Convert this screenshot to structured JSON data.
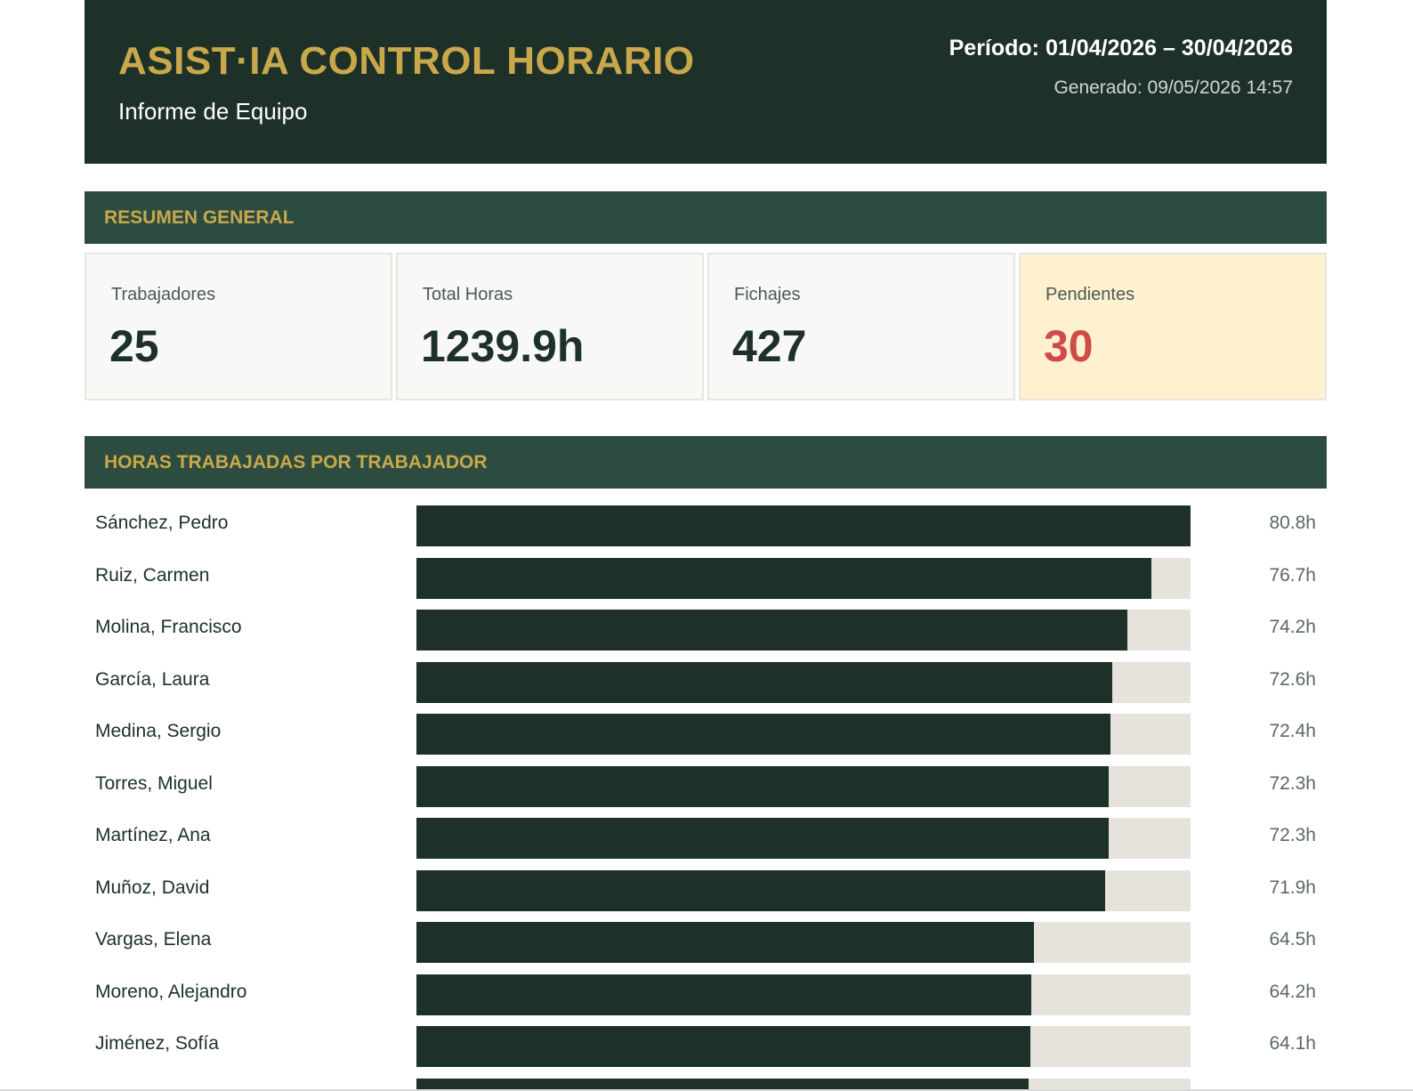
{
  "header": {
    "title": "ASIST·IA CONTROL HORARIO",
    "subtitle": "Informe de Equipo",
    "period": "Período: 01/04/2026 – 30/04/2026",
    "generated": "Generado: 09/05/2026 14:57"
  },
  "summary": {
    "section_title": "RESUMEN GENERAL",
    "cards": [
      {
        "label": "Trabajadores",
        "value": "25"
      },
      {
        "label": "Total Horas",
        "value": "1239.9h"
      },
      {
        "label": "Fichajes",
        "value": "427"
      },
      {
        "label": "Pendientes",
        "value": "30"
      }
    ]
  },
  "colors": {
    "header_bg": "#1d3128",
    "section_bg": "#2c4c3f",
    "accent_gold": "#c9a84c",
    "bar_fill": "#1d3128",
    "bar_track": "#e6e3dc",
    "pending_value": "#d04a48",
    "pending_bg": "#fdf1cf"
  },
  "hours_section": {
    "section_title": "HORAS TRABAJADAS POR TRABAJADOR",
    "max_hours": 80.8,
    "rows": [
      {
        "name": "Sánchez, Pedro",
        "hours": 80.8,
        "label": "80.8h"
      },
      {
        "name": "Ruiz, Carmen",
        "hours": 76.7,
        "label": "76.7h"
      },
      {
        "name": "Molina, Francisco",
        "hours": 74.2,
        "label": "74.2h"
      },
      {
        "name": "García, Laura",
        "hours": 72.6,
        "label": "72.6h"
      },
      {
        "name": "Medina, Sergio",
        "hours": 72.4,
        "label": "72.4h"
      },
      {
        "name": "Torres, Miguel",
        "hours": 72.3,
        "label": "72.3h"
      },
      {
        "name": "Martínez, Ana",
        "hours": 72.3,
        "label": "72.3h"
      },
      {
        "name": "Muñoz, David",
        "hours": 71.9,
        "label": "71.9h"
      },
      {
        "name": "Vargas, Elena",
        "hours": 64.5,
        "label": "64.5h"
      },
      {
        "name": "Moreno, Alejandro",
        "hours": 64.2,
        "label": "64.2h"
      },
      {
        "name": "Jiménez, Sofía",
        "hours": 64.1,
        "label": "64.1h"
      },
      {
        "name": "",
        "hours": 63.9,
        "label": ""
      }
    ]
  }
}
